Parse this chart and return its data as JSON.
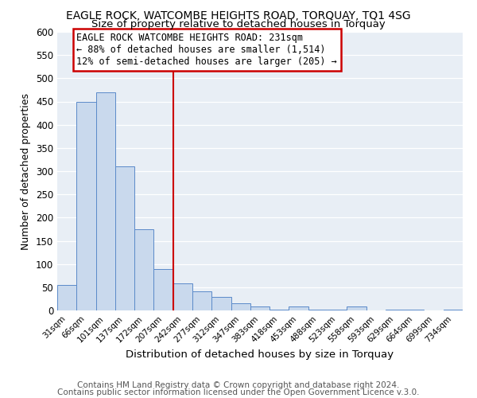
{
  "title": "EAGLE ROCK, WATCOMBE HEIGHTS ROAD, TORQUAY, TQ1 4SG",
  "subtitle": "Size of property relative to detached houses in Torquay",
  "xlabel": "Distribution of detached houses by size in Torquay",
  "ylabel": "Number of detached properties",
  "bar_labels": [
    "31sqm",
    "66sqm",
    "101sqm",
    "137sqm",
    "172sqm",
    "207sqm",
    "242sqm",
    "277sqm",
    "312sqm",
    "347sqm",
    "383sqm",
    "418sqm",
    "453sqm",
    "488sqm",
    "523sqm",
    "558sqm",
    "593sqm",
    "629sqm",
    "664sqm",
    "699sqm",
    "734sqm"
  ],
  "bar_heights": [
    55,
    450,
    470,
    310,
    175,
    90,
    58,
    42,
    30,
    15,
    8,
    1,
    8,
    1,
    1,
    8,
    0,
    1,
    1,
    0,
    1
  ],
  "bar_color": "#c9d9ed",
  "bar_edge_color": "#5b8ac9",
  "vline_x": 6.0,
  "vline_color": "#cc0000",
  "annotation_title": "EAGLE ROCK WATCOMBE HEIGHTS ROAD: 231sqm",
  "annotation_line1": "← 88% of detached houses are smaller (1,514)",
  "annotation_line2": "12% of semi-detached houses are larger (205) →",
  "annotation_box_color": "#ffffff",
  "annotation_box_edge": "#cc0000",
  "ylim": [
    0,
    600
  ],
  "yticks": [
    0,
    50,
    100,
    150,
    200,
    250,
    300,
    350,
    400,
    450,
    500,
    550,
    600
  ],
  "background_color": "#e8eef5",
  "footer1": "Contains HM Land Registry data © Crown copyright and database right 2024.",
  "footer2": "Contains public sector information licensed under the Open Government Licence v.3.0.",
  "title_fontsize": 10,
  "subtitle_fontsize": 9.5,
  "footer_fontsize": 7.5
}
